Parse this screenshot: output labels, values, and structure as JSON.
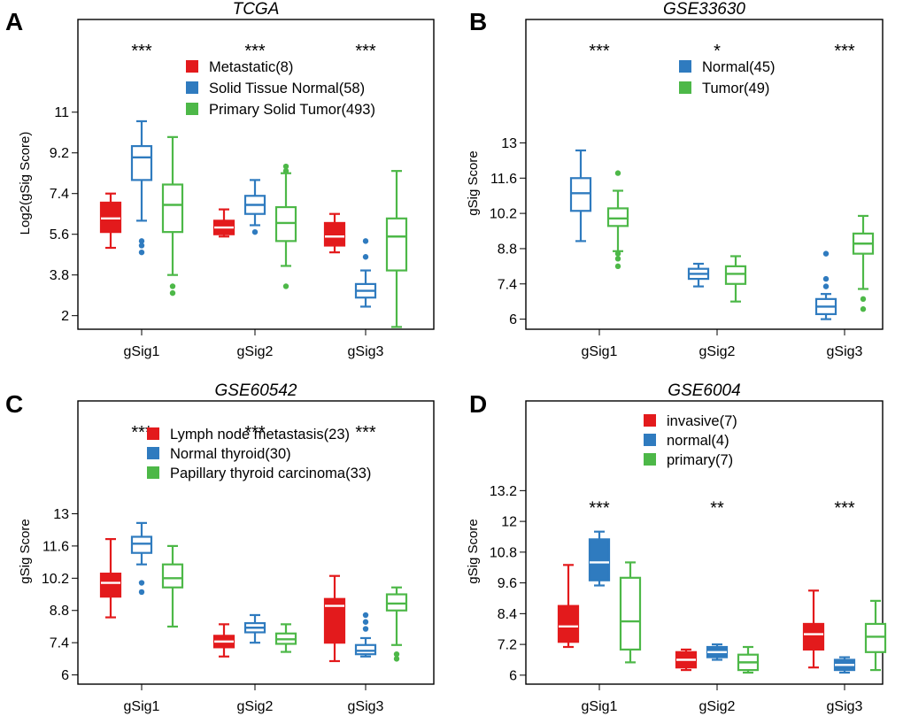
{
  "chart_data": [
    {
      "type": "box",
      "panel": "A",
      "title": "TCGA",
      "ylabel": "Log2(gSig Score)",
      "categories": [
        "gSig1",
        "gSig2",
        "gSig3"
      ],
      "yticks": [
        "2",
        "3.8",
        "5.6",
        "7.4",
        "9.2",
        "11"
      ],
      "ylim": [
        1.4,
        15.1
      ],
      "significance": [
        "***",
        "***",
        "***"
      ],
      "legend": [
        "Metastatic(8)",
        "Solid Tissue Normal(58)",
        "Primary Solid Tumor(493)"
      ],
      "colors": [
        "#e31a1c",
        "#2f7bbf",
        "#4db848"
      ],
      "filled": [
        true,
        false,
        false
      ],
      "series": [
        {
          "name": "Metastatic(8)",
          "boxes": [
            {
              "low": 5.0,
              "q1": 5.7,
              "median": 6.3,
              "q3": 7.0,
              "high": 7.4,
              "outliers": []
            },
            {
              "low": 5.5,
              "q1": 5.6,
              "median": 5.9,
              "q3": 6.2,
              "high": 6.7,
              "outliers": []
            },
            {
              "low": 4.8,
              "q1": 5.1,
              "median": 5.5,
              "q3": 6.1,
              "high": 6.5,
              "outliers": []
            }
          ]
        },
        {
          "name": "Solid Tissue Normal(58)",
          "boxes": [
            {
              "low": 6.2,
              "q1": 8.0,
              "median": 9.0,
              "q3": 9.5,
              "high": 10.6,
              "outliers": [
                5.3,
                5.1,
                4.8
              ]
            },
            {
              "low": 6.0,
              "q1": 6.5,
              "median": 6.9,
              "q3": 7.3,
              "high": 8.0,
              "outliers": [
                5.7
              ]
            },
            {
              "low": 2.4,
              "q1": 2.8,
              "median": 3.1,
              "q3": 3.4,
              "high": 4.0,
              "outliers": [
                4.6,
                5.3
              ]
            }
          ]
        },
        {
          "name": "Primary Solid Tumor(493)",
          "boxes": [
            {
              "low": 3.8,
              "q1": 5.7,
              "median": 6.9,
              "q3": 7.8,
              "high": 9.9,
              "outliers": [
                3.3,
                3.0
              ]
            },
            {
              "low": 4.2,
              "q1": 5.3,
              "median": 6.1,
              "q3": 6.8,
              "high": 8.3,
              "outliers": [
                3.3,
                8.4,
                8.6
              ]
            },
            {
              "low": 1.5,
              "q1": 4.0,
              "median": 5.5,
              "q3": 6.3,
              "high": 8.4,
              "outliers": []
            }
          ]
        }
      ]
    },
    {
      "type": "box",
      "panel": "B",
      "title": "GSE33630",
      "ylabel": "gSig Score",
      "categories": [
        "gSig1",
        "gSig2",
        "gSig3"
      ],
      "yticks": [
        "6",
        "7.4",
        "8.8",
        "10.2",
        "11.6",
        "13"
      ],
      "ylim": [
        5.6,
        17.9
      ],
      "significance": [
        "***",
        "*",
        "***"
      ],
      "legend": [
        "Normal(45)",
        "Tumor(49)"
      ],
      "colors": [
        "#2f7bbf",
        "#4db848"
      ],
      "filled": [
        false,
        false
      ],
      "series": [
        {
          "name": "Normal(45)",
          "boxes": [
            {
              "low": 9.1,
              "q1": 10.3,
              "median": 11.0,
              "q3": 11.6,
              "high": 12.7,
              "outliers": []
            },
            {
              "low": 7.3,
              "q1": 7.6,
              "median": 7.8,
              "q3": 8.0,
              "high": 8.2,
              "outliers": []
            },
            {
              "low": 6.0,
              "q1": 6.2,
              "median": 6.5,
              "q3": 6.8,
              "high": 7.0,
              "outliers": [
                7.3,
                7.6,
                8.6
              ]
            }
          ]
        },
        {
          "name": "Tumor(49)",
          "boxes": [
            {
              "low": 8.7,
              "q1": 9.7,
              "median": 10.0,
              "q3": 10.4,
              "high": 11.1,
              "outliers": [
                8.6,
                8.4,
                8.1,
                11.8
              ]
            },
            {
              "low": 6.7,
              "q1": 7.4,
              "median": 7.8,
              "q3": 8.1,
              "high": 8.5,
              "outliers": []
            },
            {
              "low": 7.2,
              "q1": 8.6,
              "median": 9.0,
              "q3": 9.4,
              "high": 10.1,
              "outliers": [
                6.8,
                6.4
              ]
            }
          ]
        }
      ]
    },
    {
      "type": "box",
      "panel": "C",
      "title": "GSE60542",
      "ylabel": "gSig Score",
      "categories": [
        "gSig1",
        "gSig2",
        "gSig3"
      ],
      "yticks": [
        "6",
        "7.4",
        "8.8",
        "10.2",
        "11.6",
        "13"
      ],
      "ylim": [
        5.6,
        17.9
      ],
      "significance": [
        "***",
        "***",
        "***"
      ],
      "legend": [
        "Lymph node metastasis(23)",
        "Normal thyroid(30)",
        "Papillary thyroid carcinoma(33)"
      ],
      "colors": [
        "#e31a1c",
        "#2f7bbf",
        "#4db848"
      ],
      "filled": [
        true,
        false,
        false
      ],
      "series": [
        {
          "name": "Lymph node metastasis(23)",
          "boxes": [
            {
              "low": 8.5,
              "q1": 9.4,
              "median": 10.0,
              "q3": 10.4,
              "high": 11.9,
              "outliers": []
            },
            {
              "low": 6.8,
              "q1": 7.2,
              "median": 7.45,
              "q3": 7.7,
              "high": 8.2,
              "outliers": []
            },
            {
              "low": 6.6,
              "q1": 7.4,
              "median": 9.0,
              "q3": 9.3,
              "high": 10.3,
              "outliers": []
            }
          ]
        },
        {
          "name": "Normal thyroid(30)",
          "boxes": [
            {
              "low": 10.8,
              "q1": 11.3,
              "median": 11.7,
              "q3": 12.0,
              "high": 12.6,
              "outliers": [
                10.0,
                9.6
              ]
            },
            {
              "low": 7.4,
              "q1": 7.85,
              "median": 8.05,
              "q3": 8.25,
              "high": 8.6,
              "outliers": []
            },
            {
              "low": 6.8,
              "q1": 6.9,
              "median": 7.05,
              "q3": 7.3,
              "high": 7.6,
              "outliers": [
                8.0,
                8.3,
                8.6
              ]
            }
          ]
        },
        {
          "name": "Papillary thyroid carcinoma(33)",
          "boxes": [
            {
              "low": 8.1,
              "q1": 9.8,
              "median": 10.2,
              "q3": 10.8,
              "high": 11.6,
              "outliers": []
            },
            {
              "low": 7.0,
              "q1": 7.35,
              "median": 7.55,
              "q3": 7.8,
              "high": 8.2,
              "outliers": []
            },
            {
              "low": 7.3,
              "q1": 8.8,
              "median": 9.1,
              "q3": 9.5,
              "high": 9.8,
              "outliers": [
                6.9,
                6.7
              ]
            }
          ]
        }
      ]
    },
    {
      "type": "box",
      "panel": "D",
      "title": "GSE6004",
      "ylabel": "gSig Score",
      "categories": [
        "gSig1",
        "gSig2",
        "gSig3"
      ],
      "yticks": [
        "6",
        "7.2",
        "8.4",
        "9.6",
        "10.8",
        "12",
        "13.2"
      ],
      "ylim": [
        5.65,
        16.7
      ],
      "significance": [
        "***",
        "**",
        "***"
      ],
      "legend": [
        "invasive(7)",
        "normal(4)",
        "primary(7)"
      ],
      "colors": [
        "#e31a1c",
        "#2f7bbf",
        "#4db848"
      ],
      "filled": [
        true,
        true,
        false
      ],
      "series": [
        {
          "name": "invasive(7)",
          "boxes": [
            {
              "low": 7.1,
              "q1": 7.3,
              "median": 7.9,
              "q3": 8.7,
              "high": 10.3,
              "outliers": []
            },
            {
              "low": 6.2,
              "q1": 6.3,
              "median": 6.6,
              "q3": 6.9,
              "high": 7.0,
              "outliers": []
            },
            {
              "low": 6.3,
              "q1": 7.0,
              "median": 7.6,
              "q3": 8.0,
              "high": 9.3,
              "outliers": []
            }
          ]
        },
        {
          "name": "normal(4)",
          "boxes": [
            {
              "low": 9.5,
              "q1": 9.7,
              "median": 10.4,
              "q3": 11.3,
              "high": 11.6,
              "outliers": []
            },
            {
              "low": 6.6,
              "q1": 6.7,
              "median": 6.9,
              "q3": 7.1,
              "high": 7.2,
              "outliers": []
            },
            {
              "low": 6.1,
              "q1": 6.2,
              "median": 6.4,
              "q3": 6.6,
              "high": 6.7,
              "outliers": []
            }
          ]
        },
        {
          "name": "primary(7)",
          "boxes": [
            {
              "low": 6.5,
              "q1": 7.0,
              "median": 8.1,
              "q3": 9.8,
              "high": 10.4,
              "outliers": []
            },
            {
              "low": 6.1,
              "q1": 6.2,
              "median": 6.5,
              "q3": 6.8,
              "high": 7.1,
              "outliers": []
            },
            {
              "low": 6.2,
              "q1": 6.9,
              "median": 7.5,
              "q3": 8.0,
              "high": 8.9,
              "outliers": []
            }
          ]
        }
      ]
    }
  ]
}
